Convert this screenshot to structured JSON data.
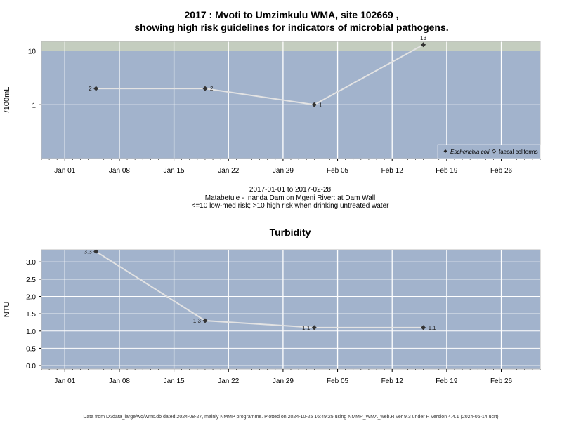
{
  "chart_data": [
    {
      "type": "line",
      "title_lines": [
        "2017 : Mvoti to Umzimkulu WMA, site 102669 ,",
        "showing high risk guidelines for indicators of microbial pathogens."
      ],
      "ylabel": "/100mL",
      "y_scale": "log",
      "ylim": [
        0.1,
        15
      ],
      "y_ticks": [
        1,
        10
      ],
      "y_tick_labels": [
        "1",
        "10"
      ],
      "x_start": "2016-12-29",
      "x_end": "2017-03-03",
      "x_ticks": [
        "2017-01-01",
        "2017-01-08",
        "2017-01-15",
        "2017-01-22",
        "2017-01-29",
        "2017-02-05",
        "2017-02-12",
        "2017-02-19",
        "2017-02-26"
      ],
      "x_tick_labels": [
        "Jan 01",
        "Jan 08",
        "Jan 15",
        "Jan 22",
        "Jan 29",
        "Feb 05",
        "Feb 12",
        "Feb 19",
        "Feb 26"
      ],
      "guideline": 10,
      "series": [
        {
          "name": "Escherichia coli",
          "x": [
            "2017-01-05",
            "2017-01-19",
            "2017-02-02",
            "2017-02-16"
          ],
          "values": [
            2,
            2,
            1,
            13
          ],
          "labels": [
            "2",
            "2",
            "1",
            "13"
          ]
        }
      ],
      "legend": {
        "position": "bottom-right",
        "items": [
          "Escherichia coli",
          "faecal coliforms"
        ]
      },
      "notes": [
        "2017-01-01 to 2017-02-28",
        "Matabetule - Inanda Dam on Mgeni River: at Dam Wall",
        "<=10 low-med risk; >10 high risk when drinking untreated water"
      ]
    },
    {
      "type": "line",
      "title": "Turbidity",
      "ylabel": "NTU",
      "ylim": [
        -0.1,
        3.35
      ],
      "y_ticks": [
        0,
        0.5,
        1,
        1.5,
        2,
        2.5,
        3
      ],
      "y_tick_labels": [
        "0.0",
        "0.5",
        "1.0",
        "1.5",
        "2.0",
        "2.5",
        "3.0"
      ],
      "x_start": "2016-12-29",
      "x_end": "2017-03-03",
      "x_ticks": [
        "2017-01-01",
        "2017-01-08",
        "2017-01-15",
        "2017-01-22",
        "2017-01-29",
        "2017-02-05",
        "2017-02-12",
        "2017-02-19",
        "2017-02-26"
      ],
      "x_tick_labels": [
        "Jan 01",
        "Jan 08",
        "Jan 15",
        "Jan 22",
        "Jan 29",
        "Feb 05",
        "Feb 12",
        "Feb 19",
        "Feb 26"
      ],
      "series": [
        {
          "name": "",
          "x": [
            "2017-01-05",
            "2017-01-19",
            "2017-02-02",
            "2017-02-16"
          ],
          "values": [
            3.3,
            1.3,
            1.1,
            1.1
          ],
          "labels": [
            "3.3",
            "1.3",
            "1.1",
            "1.1"
          ]
        }
      ]
    }
  ],
  "footer": "Data from D:/data_large/wq/wms.db dated 2024-08-27, mainly NMMP programme. Plotted on 2024-10-25 16:49:25 using NMMP_WMA_web.R ver 9.3 under R version 4.4.1 (2024-06-14 ucrt)",
  "colors": {
    "panel": "#a2b3cc",
    "high_risk_band": "#c4cdbf",
    "grid": "#ffffff",
    "line": "#e3e3e3",
    "point": "#333333"
  }
}
